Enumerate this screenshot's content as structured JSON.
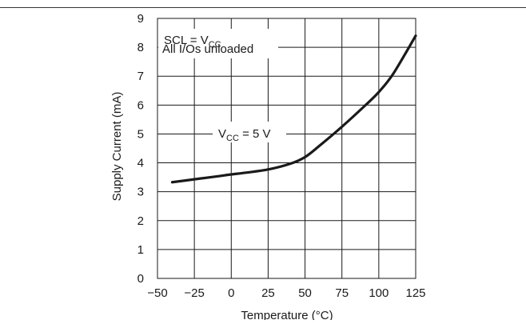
{
  "chart_data": {
    "type": "line",
    "title": "",
    "xlabel": "Temperature (°C)",
    "ylabel": "Supply Current (mA)",
    "xlim": [
      -50,
      125
    ],
    "ylim": [
      0,
      9
    ],
    "x_ticks": [
      -50,
      -25,
      0,
      25,
      50,
      75,
      100,
      125
    ],
    "x_tick_labels": [
      "−50",
      "−25",
      "0",
      "25",
      "50",
      "75",
      "100",
      "125"
    ],
    "y_ticks": [
      0,
      1,
      2,
      3,
      4,
      5,
      6,
      7,
      8,
      9
    ],
    "grid": true,
    "series": [
      {
        "label_base": "V",
        "label_sub": "CC",
        "label_rest": " = 5 V",
        "x": [
          -40,
          -25,
          -10,
          0,
          10,
          25,
          40,
          50,
          60,
          75,
          90,
          100,
          110,
          125
        ],
        "y": [
          3.33,
          3.43,
          3.53,
          3.6,
          3.66,
          3.77,
          3.97,
          4.2,
          4.6,
          5.25,
          5.95,
          6.45,
          7.1,
          8.4
        ]
      }
    ],
    "annotation": {
      "line1_base": "SCL = V",
      "line1_sub": "CC",
      "line2": "All I/Os unloaded"
    }
  }
}
